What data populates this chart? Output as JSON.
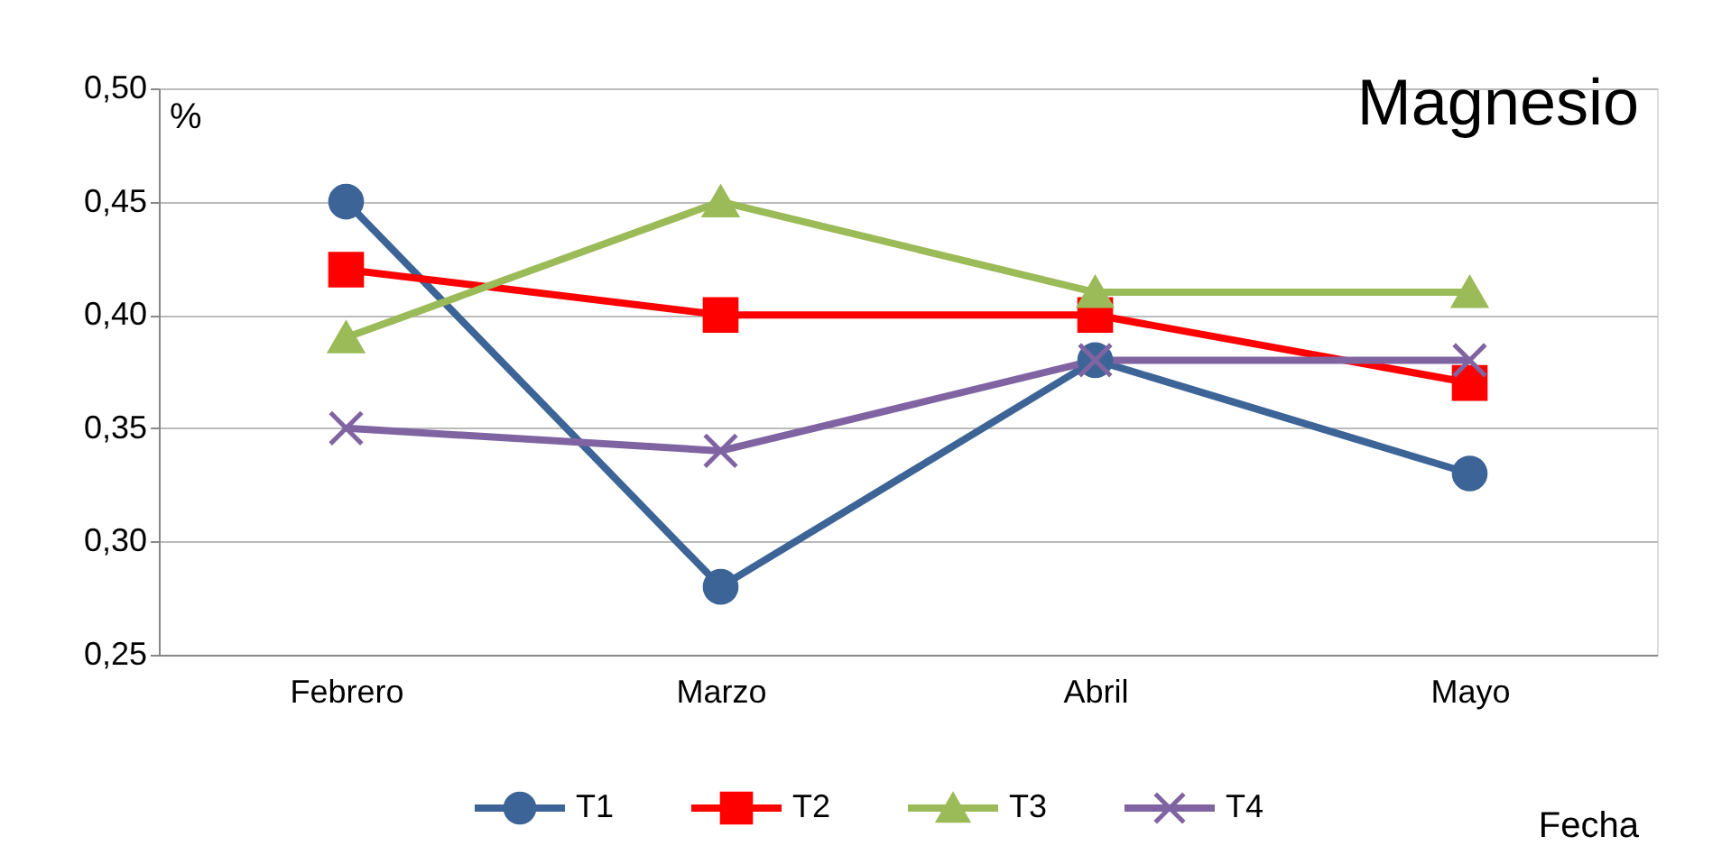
{
  "chart_data": {
    "type": "line",
    "title": "Magnesio",
    "xlabel": "Fecha",
    "ylabel": "%",
    "categories": [
      "Febrero",
      "Marzo",
      "Abril",
      "Mayo"
    ],
    "series": [
      {
        "name": "T1",
        "color": "#3c6496",
        "marker": "circle",
        "values": [
          0.45,
          0.28,
          0.38,
          0.33
        ]
      },
      {
        "name": "T2",
        "color": "#ff0000",
        "marker": "square",
        "values": [
          0.42,
          0.4,
          0.4,
          0.37
        ]
      },
      {
        "name": "T3",
        "color": "#9bbb59",
        "marker": "triangle",
        "values": [
          0.39,
          0.45,
          0.41,
          0.41
        ]
      },
      {
        "name": "T4",
        "color": "#8064a2",
        "marker": "cross",
        "values": [
          0.35,
          0.34,
          0.38,
          0.38
        ]
      }
    ],
    "ylim": [
      0.25,
      0.5
    ],
    "yticks": [
      {
        "value": 0.25,
        "label": "0,25"
      },
      {
        "value": 0.3,
        "label": "0,30"
      },
      {
        "value": 0.35,
        "label": "0,35"
      },
      {
        "value": 0.4,
        "label": "0,40"
      },
      {
        "value": 0.45,
        "label": "0,45"
      },
      {
        "value": 0.5,
        "label": "0,50"
      }
    ],
    "grid": "y",
    "legend": "bottom",
    "line_style": "solid"
  }
}
